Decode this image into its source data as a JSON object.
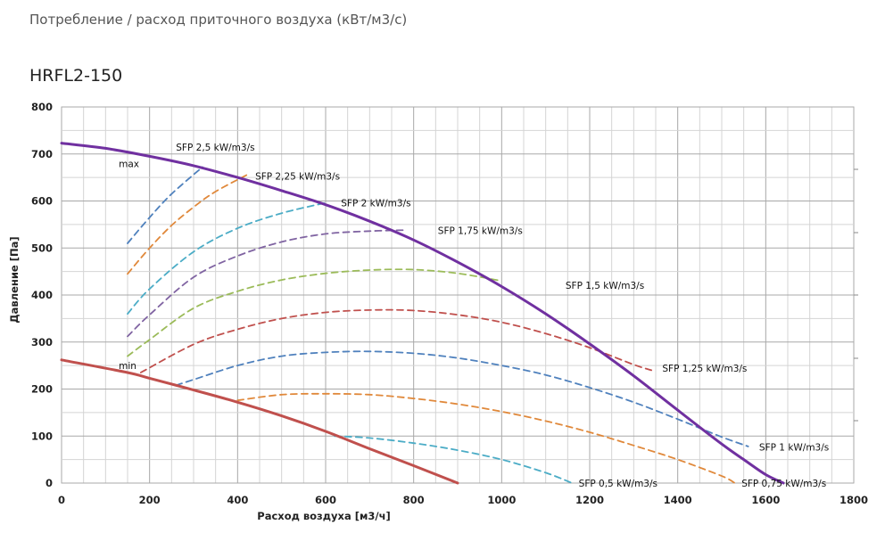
{
  "header": {
    "text": "Потребление / расход приточного воздуха (кВт/м3/с)"
  },
  "chart_data": {
    "type": "line",
    "title": "HRFL2-150",
    "xlabel": "Расход воздуха [м3/ч]",
    "ylabel": "Давление [Па]",
    "xlim": [
      0,
      1800
    ],
    "ylim": [
      0,
      800
    ],
    "xticks": [
      0,
      200,
      400,
      600,
      800,
      1000,
      1200,
      1400,
      1600,
      1800
    ],
    "yticks": [
      0,
      100,
      200,
      300,
      400,
      500,
      600,
      700,
      800
    ],
    "grid": true,
    "series": [
      {
        "name": "max",
        "style": "solid",
        "color": "#7030a0",
        "x": [
          0,
          100,
          200,
          300,
          400,
          500,
          600,
          700,
          800,
          900,
          1000,
          1100,
          1200,
          1300,
          1400,
          1500,
          1550,
          1600,
          1640
        ],
        "y": [
          723,
          712,
          695,
          675,
          650,
          622,
          592,
          557,
          517,
          470,
          418,
          360,
          296,
          228,
          155,
          83,
          50,
          18,
          0
        ]
      },
      {
        "name": "min",
        "style": "solid",
        "color": "#c0504d",
        "x": [
          0,
          150,
          200,
          300,
          400,
          500,
          600,
          700,
          800,
          900
        ],
        "y": [
          262,
          235,
          223,
          198,
          172,
          143,
          110,
          73,
          37,
          0
        ]
      },
      {
        "name": "SFP 2,5 kW/m3/s",
        "style": "dashed",
        "color": "#4f81bd",
        "x": [
          150,
          200,
          250,
          320
        ],
        "y": [
          510,
          565,
          615,
          672
        ]
      },
      {
        "name": "SFP 2,25 kW/m3/s",
        "style": "dashed",
        "color": "#e0883a",
        "x": [
          150,
          200,
          250,
          300,
          350,
          420
        ],
        "y": [
          445,
          500,
          548,
          587,
          620,
          655
        ]
      },
      {
        "name": "SFP 2 kW/m3/s",
        "style": "dashed",
        "color": "#4bacc6",
        "x": [
          150,
          200,
          300,
          400,
          500,
          600
        ],
        "y": [
          360,
          413,
          492,
          542,
          574,
          596
        ]
      },
      {
        "name": "SFP 1,75 kW/m3/s",
        "style": "dashed",
        "color": "#8064a2",
        "x": [
          150,
          200,
          300,
          400,
          500,
          600,
          700,
          780
        ],
        "y": [
          312,
          358,
          438,
          483,
          513,
          530,
          536,
          538
        ]
      },
      {
        "name": "SFP 1,5 kW/m3/s",
        "style": "dashed",
        "color": "#9bbb59",
        "x": [
          150,
          200,
          300,
          400,
          500,
          600,
          700,
          800,
          900,
          1000
        ],
        "y": [
          270,
          305,
          372,
          408,
          432,
          446,
          453,
          454,
          446,
          430
        ]
      },
      {
        "name": "SFP 1,25 kW/m3/s",
        "style": "dashed",
        "color": "#c0504d",
        "x": [
          180,
          300,
          400,
          500,
          600,
          700,
          800,
          900,
          1000,
          1100,
          1200,
          1300,
          1340
        ],
        "y": [
          235,
          295,
          327,
          350,
          363,
          368,
          367,
          358,
          342,
          318,
          288,
          252,
          240
        ]
      },
      {
        "name": "SFP 1 kW/m3/s",
        "style": "dashed",
        "color": "#4f81bd",
        "x": [
          260,
          300,
          400,
          500,
          600,
          700,
          800,
          900,
          1000,
          1100,
          1200,
          1300,
          1400,
          1500,
          1560
        ],
        "y": [
          208,
          220,
          250,
          270,
          278,
          280,
          276,
          266,
          250,
          230,
          203,
          172,
          136,
          98,
          78
        ]
      },
      {
        "name": "SFP 0,75 kW/m3/s",
        "style": "dashed",
        "color": "#e0883a",
        "x": [
          400,
          500,
          600,
          700,
          800,
          900,
          1000,
          1100,
          1200,
          1300,
          1400,
          1500,
          1530
        ],
        "y": [
          176,
          188,
          190,
          188,
          180,
          168,
          152,
          132,
          108,
          80,
          50,
          15,
          0
        ]
      },
      {
        "name": "SFP 0,5 kW/m3/s",
        "style": "dashed",
        "color": "#4bacc6",
        "x": [
          620,
          700,
          800,
          900,
          1000,
          1100,
          1160
        ],
        "y": [
          100,
          96,
          85,
          70,
          50,
          22,
          0
        ]
      }
    ],
    "annotations": [
      {
        "text": "max",
        "x": 130,
        "y": 680
      },
      {
        "text": "min",
        "x": 130,
        "y": 250
      },
      {
        "text": "SFP 2,5 kW/m3/s",
        "x": 260,
        "y": 715
      },
      {
        "text": "SFP 2,25 kW/m3/s",
        "x": 440,
        "y": 653
      },
      {
        "text": "SFP 2 kW/m3/s",
        "x": 635,
        "y": 596
      },
      {
        "text": "SFP 1,75 kW/m3/s",
        "x": 855,
        "y": 537
      },
      {
        "text": "SFP 1,5 kW/m3/s",
        "x": 1145,
        "y": 421
      },
      {
        "text": "SFP 1,25 kW/m3/s",
        "x": 1365,
        "y": 245
      },
      {
        "text": "SFP 1 kW/m3/s",
        "x": 1585,
        "y": 77
      },
      {
        "text": "SFP 0,75 kW/m3/s",
        "x": 1545,
        "y": 0
      },
      {
        "text": "SFP 0,5 kW/m3/s",
        "x": 1175,
        "y": 0
      }
    ]
  }
}
